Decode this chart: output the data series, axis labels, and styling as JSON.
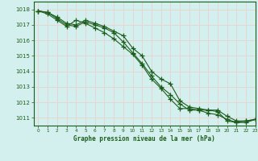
{
  "title": "Graphe pression niveau de la mer (hPa)",
  "background_color": "#d4f0ee",
  "plot_bg_color": "#d4f0ee",
  "grid_color": "#e8d4d4",
  "line_color": "#1a5c1a",
  "marker_color": "#1a5c1a",
  "xlim": [
    -0.5,
    23
  ],
  "ylim": [
    1010.5,
    1018.5
  ],
  "yticks": [
    1011,
    1012,
    1013,
    1014,
    1015,
    1016,
    1017,
    1018
  ],
  "xticks": [
    0,
    1,
    2,
    3,
    4,
    5,
    6,
    7,
    8,
    9,
    10,
    11,
    12,
    13,
    14,
    15,
    16,
    17,
    18,
    19,
    20,
    21,
    22,
    23
  ],
  "series": [
    [
      1017.9,
      1017.8,
      1017.5,
      1017.1,
      1017.0,
      1017.3,
      1017.1,
      1016.9,
      1016.6,
      1016.3,
      1015.5,
      1015.0,
      1014.0,
      1013.5,
      1013.2,
      1012.1,
      1011.7,
      1011.6,
      1011.5,
      1011.5,
      1011.1,
      1010.8,
      1010.8,
      1010.9
    ],
    [
      1017.9,
      1017.8,
      1017.4,
      1017.0,
      1016.9,
      1017.2,
      1017.0,
      1016.8,
      1016.5,
      1015.9,
      1015.2,
      1014.5,
      1013.7,
      1013.0,
      1012.5,
      1011.9,
      1011.5,
      1011.5,
      1011.3,
      1011.2,
      1010.9,
      1010.7,
      1010.8,
      1010.9
    ],
    [
      1017.9,
      1017.7,
      1017.3,
      1016.9,
      1017.3,
      1017.1,
      1016.8,
      1016.5,
      1016.1,
      1015.6,
      1015.1,
      1014.4,
      1013.5,
      1012.9,
      1012.2,
      1011.6,
      1011.6,
      1011.5,
      1011.5,
      1011.4,
      1010.8,
      1010.7,
      1010.7,
      1010.9
    ]
  ]
}
